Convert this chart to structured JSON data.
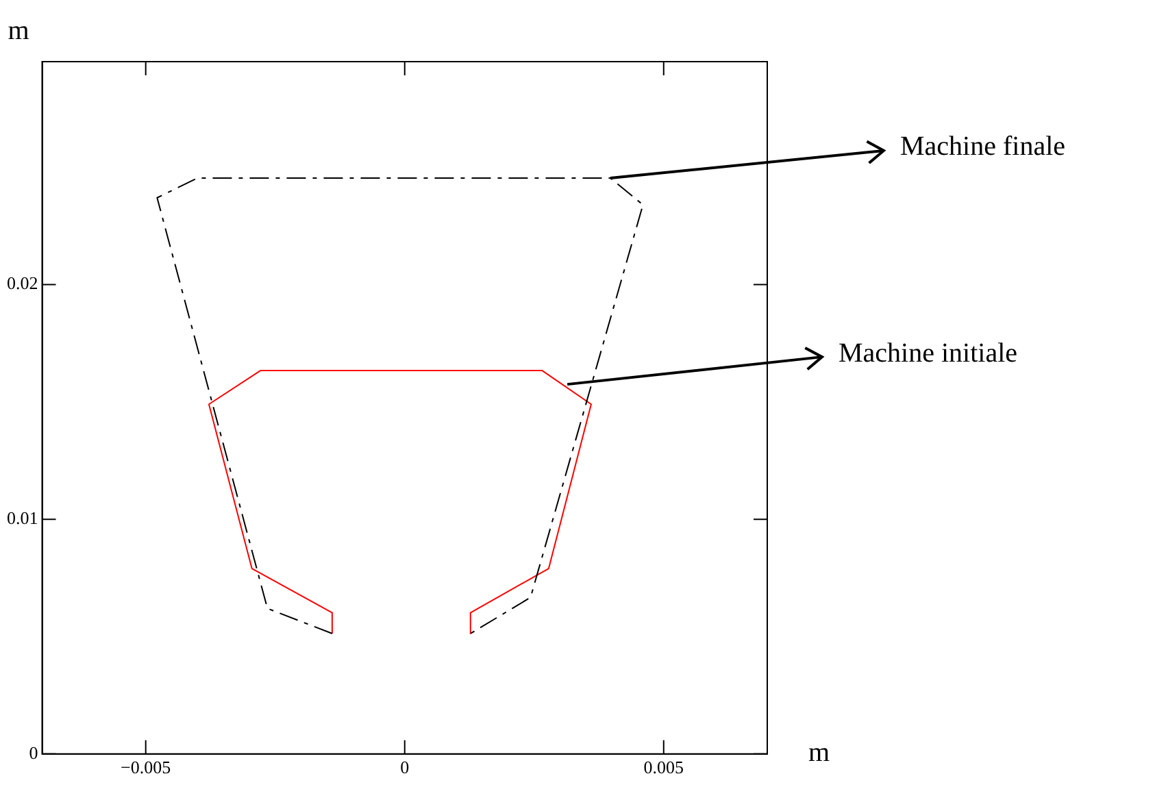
{
  "chart_data": {
    "type": "line",
    "xlabel": "m",
    "ylabel": "m",
    "xlim": [
      -0.007,
      0.007
    ],
    "ylim": [
      0,
      0.0295
    ],
    "xticks": [
      {
        "value": -0.005,
        "label": "−0.005"
      },
      0,
      0.005
    ],
    "yticks": [
      0,
      0.01,
      0.02
    ],
    "grid": false,
    "marker": "none",
    "annotations": [
      {
        "text": "Machine finale",
        "x": 0.00397,
        "y": 0.02454
      },
      {
        "text": "Machine initiale",
        "x": 0.00314,
        "y": 0.01575
      }
    ],
    "series": [
      {
        "color": "#000000",
        "line_style": "dashed",
        "x": [
          -0.0014,
          -0.00265,
          -0.00478,
          -0.004,
          0.00397,
          0.0046,
          0.00243,
          0.00127
        ],
        "values": [
          0.00513,
          0.0062,
          0.0237,
          0.02454,
          0.02454,
          0.0234,
          0.00667,
          0.00513
        ]
      },
      {
        "color": "#ff0000",
        "line_style": "solid",
        "x": [
          -0.0014,
          -0.0014,
          -0.00295,
          -0.00378,
          -0.00278,
          0.00265,
          0.0036,
          0.00278,
          0.00127,
          0.00127
        ],
        "values": [
          0.00513,
          0.00602,
          0.0079,
          0.0149,
          0.01634,
          0.01634,
          0.0149,
          0.0079,
          0.00602,
          0.00513
        ]
      }
    ]
  }
}
